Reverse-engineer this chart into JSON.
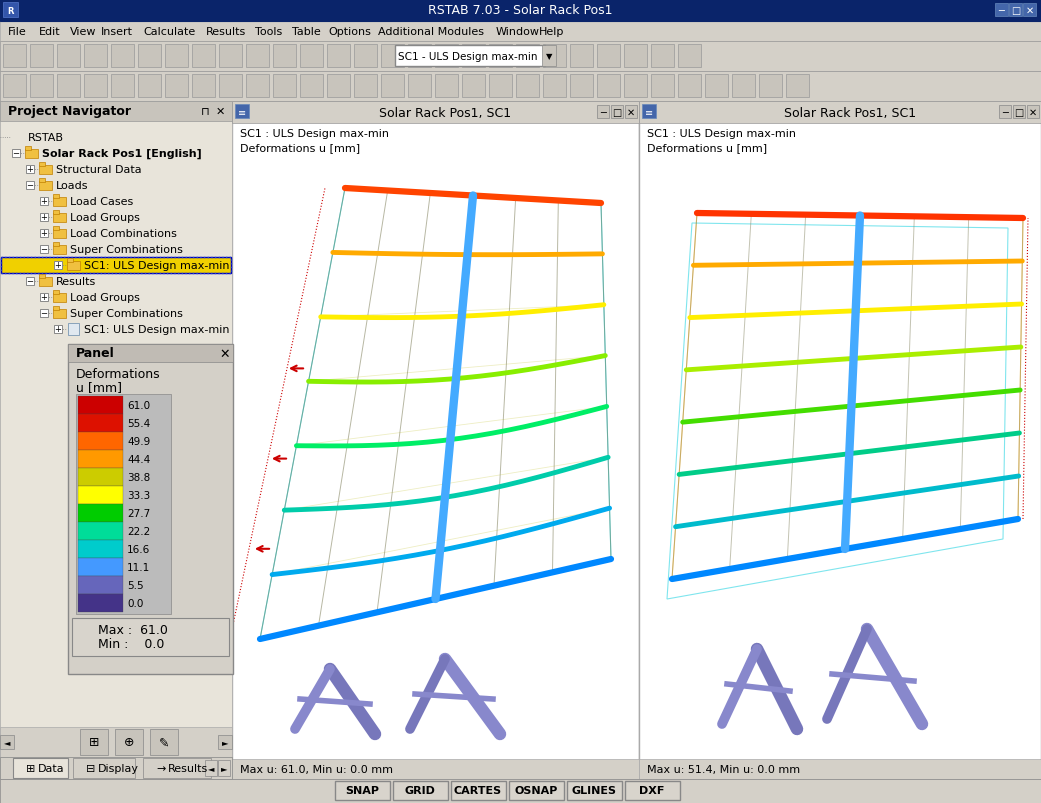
{
  "title_bar": "RSTAB 7.03 - Solar Rack Pos1",
  "menu_items": [
    "File",
    "Edit",
    "View",
    "Insert",
    "Calculate",
    "Results",
    "Tools",
    "Table",
    "Options",
    "Additional Modules",
    "Window",
    "Help"
  ],
  "bg_color": "#d4d0c8",
  "panel_bg": "#e8e4da",
  "title_bar_bg": "#0a246a",
  "project_nav_title": "Project Navigator",
  "tree_data": [
    [
      0,
      "RSTAB",
      false,
      false
    ],
    [
      1,
      "Solar Rack Pos1 [English]",
      true,
      false
    ],
    [
      2,
      "Structural Data",
      false,
      false
    ],
    [
      2,
      "Loads",
      false,
      false
    ],
    [
      3,
      "Load Cases",
      false,
      false
    ],
    [
      3,
      "Load Groups",
      false,
      false
    ],
    [
      3,
      "Load Combinations",
      false,
      false
    ],
    [
      3,
      "Super Combinations",
      false,
      false
    ],
    [
      4,
      "SC1: ULS Design max-min",
      false,
      true
    ],
    [
      2,
      "Results",
      false,
      false
    ],
    [
      3,
      "Load Groups",
      false,
      false
    ],
    [
      3,
      "Super Combinations",
      false,
      false
    ],
    [
      4,
      "SC1: ULS Design max-min",
      false,
      false
    ]
  ],
  "panel_title": "Panel",
  "colorbar_values": [
    "61.0",
    "55.4",
    "49.9",
    "44.4",
    "38.8",
    "33.3",
    "27.7",
    "22.2",
    "16.6",
    "11.1",
    "5.5",
    "0.0"
  ],
  "colorbar_colors": [
    "#cc0000",
    "#dd1100",
    "#ff6600",
    "#ff9900",
    "#cccc00",
    "#ffff00",
    "#00cc00",
    "#00dd99",
    "#00cccc",
    "#4499ff",
    "#6666bb",
    "#443388"
  ],
  "max_val": "61.0",
  "min_val": "0.0",
  "left_view_title": "Solar Rack Pos1, SC1",
  "right_view_title": "Solar Rack Pos1, SC1",
  "sc1_label": "SC1 : ULS Design max-min",
  "deform_unit": "Deformations u [mm]",
  "left_bottom_text": "Max u: 61.0, Min u: 0.0 mm",
  "right_bottom_text": "Max u: 51.4, Min u: 0.0 mm",
  "bottom_bar_items": [
    "SNAP",
    "GRID",
    "CARTES",
    "OSNAP",
    "GLINES",
    "DXF"
  ],
  "sc1_combo_text": "SC1 - ULS Design max-min",
  "view_bg": "#ffffff"
}
